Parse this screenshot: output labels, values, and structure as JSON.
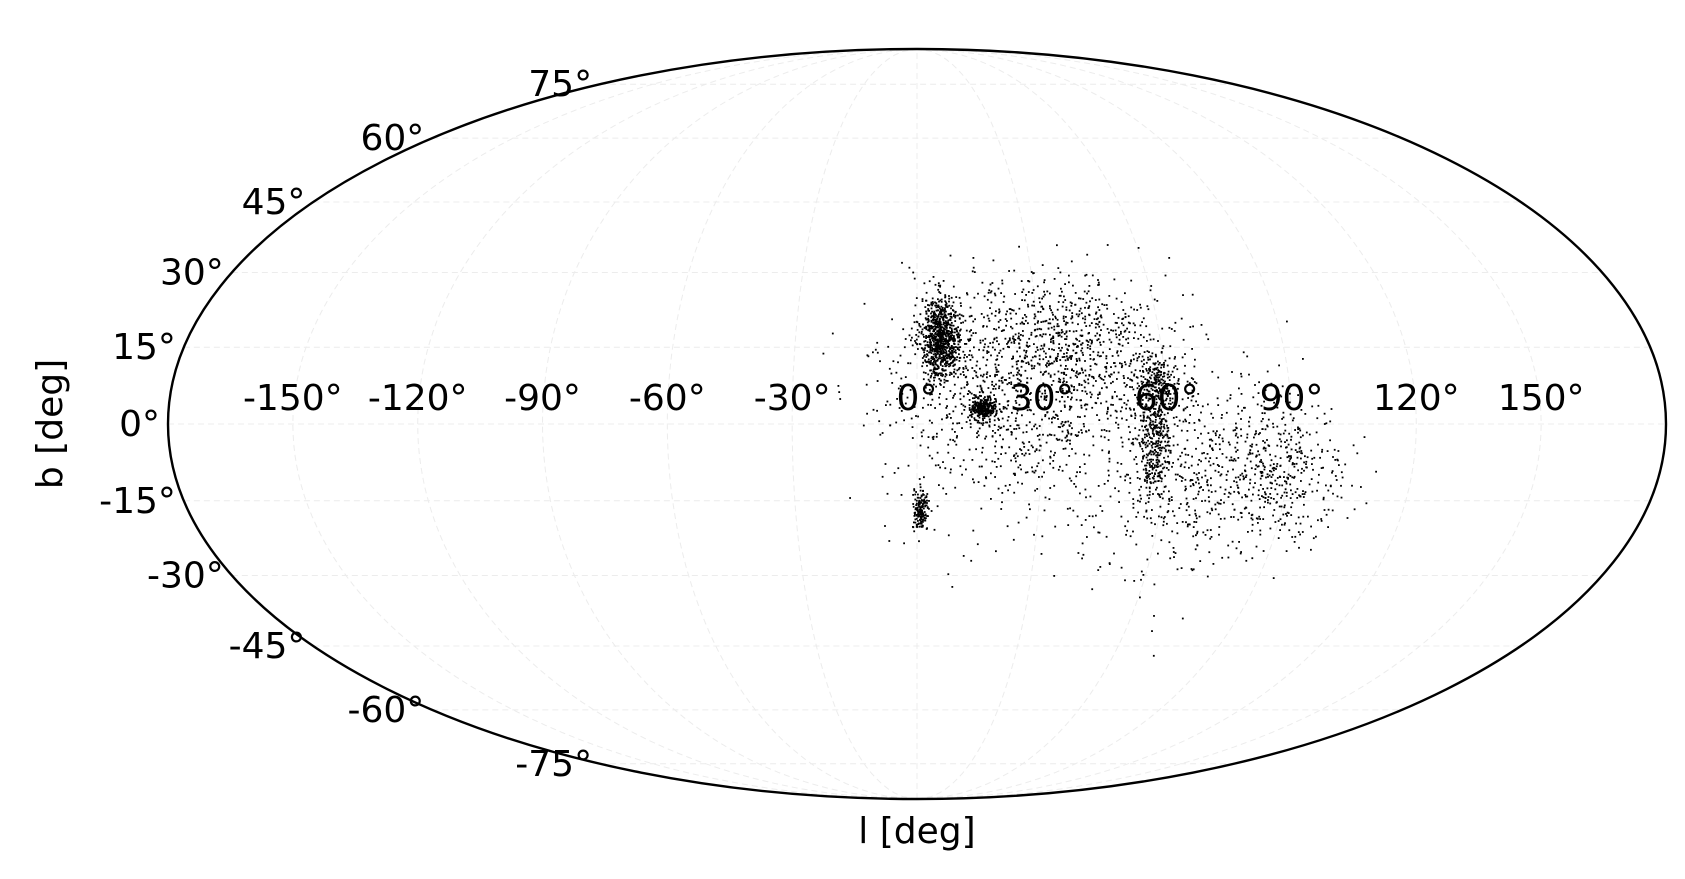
{
  "chart_data": {
    "type": "scatter",
    "projection": "mollweide",
    "grid": true,
    "xlabel": "l [deg]",
    "ylabel": "b [deg]",
    "xlim": [
      -180,
      180
    ],
    "ylim": [
      -90,
      90
    ],
    "x_ticks": [
      -150,
      -120,
      -90,
      -60,
      -30,
      0,
      30,
      60,
      90,
      120,
      150
    ],
    "x_tick_labels": [
      "-150°",
      "-120°",
      "-90°",
      "-60°",
      "-30°",
      "0°",
      "30°",
      "60°",
      "90°",
      "120°",
      "150°"
    ],
    "y_ticks": [
      -75,
      -60,
      -45,
      -30,
      -15,
      0,
      15,
      30,
      45,
      60,
      75
    ],
    "y_tick_labels": [
      "-75°",
      "-60°",
      "-45°",
      "-30°",
      "-15°",
      "0°",
      "15°",
      "30°",
      "45°",
      "60°",
      "75°"
    ],
    "marker_color": "#000000",
    "clusters": [
      {
        "l": 6,
        "b": 17,
        "sl": 2.5,
        "sb": 4,
        "n": 900
      },
      {
        "l": 16,
        "b": 3,
        "sl": 1.5,
        "sb": 1,
        "n": 300
      },
      {
        "l": 1,
        "b": -17,
        "sl": 1,
        "sb": 2,
        "n": 170
      },
      {
        "l": 58,
        "b": 7,
        "sl": 3,
        "sb": 3,
        "n": 300
      },
      {
        "l": 57,
        "b": -5,
        "sl": 2,
        "sb": 6,
        "n": 280
      },
      {
        "l": 30,
        "b": 13,
        "sl": 16,
        "sb": 8,
        "n": 700
      },
      {
        "l": 20,
        "b": 3,
        "sl": 14,
        "sb": 9,
        "n": 400
      },
      {
        "l": 75,
        "b": -7,
        "sl": 12,
        "sb": 7,
        "n": 400
      },
      {
        "l": 90,
        "b": -10,
        "sl": 8,
        "sb": 6,
        "n": 250
      },
      {
        "l": 43,
        "b": 0,
        "sl": 22,
        "sb": 12,
        "n": 400
      },
      {
        "l": 67,
        "b": -20,
        "sl": 14,
        "sb": 8,
        "n": 120
      },
      {
        "l": 40,
        "b": 19,
        "sl": 10,
        "sb": 4,
        "n": 200
      }
    ],
    "points": [
      [
        -4,
        32
      ],
      [
        -2,
        31
      ],
      [
        -1,
        30
      ],
      [
        15,
        31
      ],
      [
        33,
        28
      ],
      [
        14,
        -27
      ],
      [
        12,
        -26
      ],
      [
        -8,
        -20
      ],
      [
        -7,
        -23
      ],
      [
        -12,
        2
      ],
      [
        -6,
        8
      ],
      [
        -4,
        4
      ],
      [
        55,
        -31
      ],
      [
        85,
        -27
      ],
      [
        102,
        -8
      ],
      [
        101,
        -7
      ],
      [
        98,
        0
      ],
      [
        98,
        2
      ],
      [
        80,
        14
      ],
      [
        68,
        19
      ],
      [
        52,
        24
      ],
      [
        36,
        24
      ],
      [
        27,
        26
      ],
      [
        22,
        24
      ],
      [
        -5,
        10
      ],
      [
        -3,
        15
      ],
      [
        10,
        25
      ],
      [
        4,
        24
      ]
    ]
  }
}
